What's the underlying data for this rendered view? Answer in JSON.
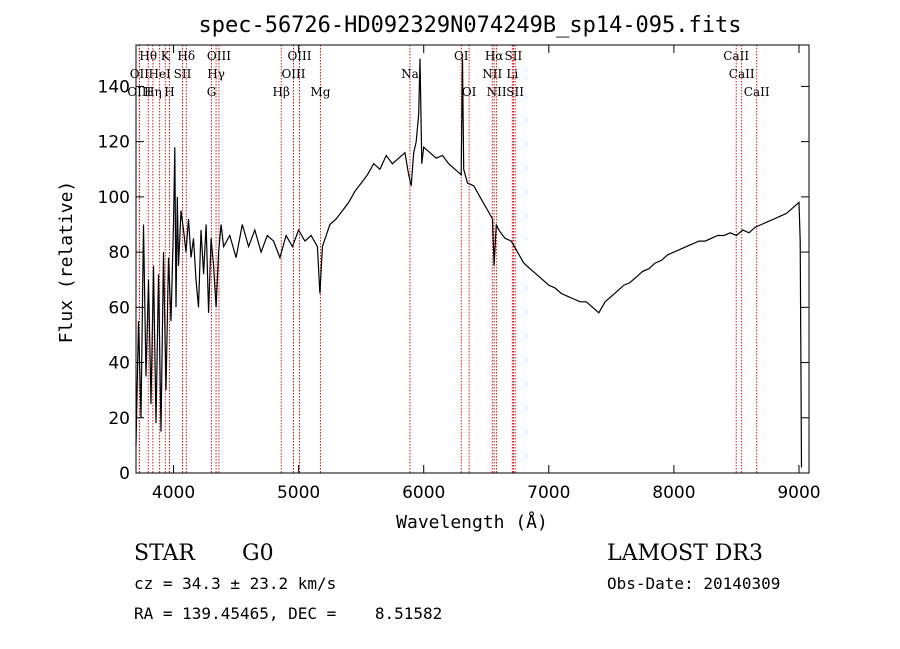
{
  "chart_data": {
    "type": "line",
    "title": "spec-56726-HD092329N074249B_sp14-095.fits",
    "xlabel": "Wavelength (Å)",
    "ylabel": "Flux (relative)",
    "xlim": [
      3700,
      9080
    ],
    "ylim": [
      0,
      155
    ],
    "x_ticks": [
      4000,
      5000,
      6000,
      7000,
      8000,
      9000
    ],
    "y_ticks": [
      0,
      20,
      40,
      60,
      80,
      100,
      120,
      140
    ],
    "series": [
      {
        "points": [
          [
            3700,
            10
          ],
          [
            3720,
            55
          ],
          [
            3740,
            20
          ],
          [
            3760,
            90
          ],
          [
            3780,
            35
          ],
          [
            3800,
            70
          ],
          [
            3820,
            25
          ],
          [
            3840,
            75
          ],
          [
            3860,
            18
          ],
          [
            3880,
            72
          ],
          [
            3900,
            15
          ],
          [
            3920,
            80
          ],
          [
            3940,
            30
          ],
          [
            3960,
            78
          ],
          [
            3980,
            55
          ],
          [
            4000,
            90
          ],
          [
            4010,
            118
          ],
          [
            4020,
            60
          ],
          [
            4030,
            100
          ],
          [
            4040,
            75
          ],
          [
            4060,
            95
          ],
          [
            4080,
            88
          ],
          [
            4100,
            80
          ],
          [
            4120,
            92
          ],
          [
            4140,
            78
          ],
          [
            4160,
            85
          ],
          [
            4180,
            70
          ],
          [
            4200,
            60
          ],
          [
            4220,
            88
          ],
          [
            4240,
            72
          ],
          [
            4260,
            90
          ],
          [
            4280,
            58
          ],
          [
            4300,
            85
          ],
          [
            4320,
            75
          ],
          [
            4340,
            60
          ],
          [
            4360,
            80
          ],
          [
            4380,
            90
          ],
          [
            4400,
            82
          ],
          [
            4450,
            86
          ],
          [
            4500,
            78
          ],
          [
            4550,
            90
          ],
          [
            4600,
            82
          ],
          [
            4650,
            88
          ],
          [
            4700,
            80
          ],
          [
            4750,
            86
          ],
          [
            4800,
            84
          ],
          [
            4850,
            78
          ],
          [
            4900,
            86
          ],
          [
            4950,
            82
          ],
          [
            5000,
            88
          ],
          [
            5050,
            84
          ],
          [
            5100,
            86
          ],
          [
            5150,
            82
          ],
          [
            5170,
            65
          ],
          [
            5190,
            82
          ],
          [
            5250,
            90
          ],
          [
            5300,
            92
          ],
          [
            5350,
            95
          ],
          [
            5400,
            98
          ],
          [
            5450,
            102
          ],
          [
            5500,
            105
          ],
          [
            5550,
            108
          ],
          [
            5600,
            112
          ],
          [
            5650,
            110
          ],
          [
            5700,
            115
          ],
          [
            5750,
            112
          ],
          [
            5800,
            114
          ],
          [
            5850,
            116
          ],
          [
            5880,
            108
          ],
          [
            5900,
            104
          ],
          [
            5920,
            116
          ],
          [
            5940,
            120
          ],
          [
            5960,
            130
          ],
          [
            5970,
            150
          ],
          [
            5985,
            112
          ],
          [
            6000,
            118
          ],
          [
            6050,
            116
          ],
          [
            6100,
            114
          ],
          [
            6150,
            115
          ],
          [
            6200,
            112
          ],
          [
            6250,
            110
          ],
          [
            6300,
            108
          ],
          [
            6310,
            150
          ],
          [
            6320,
            110
          ],
          [
            6350,
            105
          ],
          [
            6400,
            104
          ],
          [
            6450,
            100
          ],
          [
            6500,
            96
          ],
          [
            6550,
            92
          ],
          [
            6563,
            75
          ],
          [
            6580,
            90
          ],
          [
            6600,
            88
          ],
          [
            6650,
            85
          ],
          [
            6700,
            84
          ],
          [
            6750,
            80
          ],
          [
            6800,
            76
          ],
          [
            6850,
            74
          ],
          [
            6900,
            72
          ],
          [
            6950,
            70
          ],
          [
            7000,
            68
          ],
          [
            7050,
            67
          ],
          [
            7100,
            65
          ],
          [
            7150,
            64
          ],
          [
            7200,
            63
          ],
          [
            7250,
            62
          ],
          [
            7300,
            62
          ],
          [
            7350,
            60
          ],
          [
            7400,
            58
          ],
          [
            7450,
            62
          ],
          [
            7500,
            64
          ],
          [
            7550,
            66
          ],
          [
            7600,
            68
          ],
          [
            7650,
            69
          ],
          [
            7700,
            71
          ],
          [
            7750,
            73
          ],
          [
            7800,
            74
          ],
          [
            7850,
            76
          ],
          [
            7900,
            77
          ],
          [
            7950,
            79
          ],
          [
            8000,
            80
          ],
          [
            8050,
            81
          ],
          [
            8100,
            82
          ],
          [
            8150,
            83
          ],
          [
            8200,
            84
          ],
          [
            8250,
            84
          ],
          [
            8300,
            85
          ],
          [
            8350,
            86
          ],
          [
            8400,
            86
          ],
          [
            8450,
            87
          ],
          [
            8500,
            86
          ],
          [
            8550,
            88
          ],
          [
            8600,
            87
          ],
          [
            8650,
            89
          ],
          [
            8700,
            90
          ],
          [
            8750,
            91
          ],
          [
            8800,
            92
          ],
          [
            8850,
            93
          ],
          [
            8900,
            94
          ],
          [
            8950,
            96
          ],
          [
            9000,
            98
          ],
          [
            9010,
            84
          ],
          [
            9020,
            2
          ]
        ]
      }
    ],
    "lines": [
      {
        "label": "Hθ",
        "x": 3798,
        "row": 0
      },
      {
        "label": "K",
        "x": 3934,
        "row": 0
      },
      {
        "label": "Hδ",
        "x": 4102,
        "row": 0
      },
      {
        "label": "OIII",
        "x": 4363,
        "row": 0
      },
      {
        "label": "OIII",
        "x": 5007,
        "row": 0
      },
      {
        "label": "OI",
        "x": 6300,
        "row": 0
      },
      {
        "label": "Hα",
        "x": 6563,
        "row": 0
      },
      {
        "label": "SII",
        "x": 6717,
        "row": 0
      },
      {
        "label": "CaII",
        "x": 8498,
        "row": 0
      },
      {
        "label": "OII",
        "x": 3727,
        "row": 1
      },
      {
        "label": "HeI",
        "x": 3889,
        "row": 1
      },
      {
        "label": "SII",
        "x": 4072,
        "row": 1
      },
      {
        "label": "Hγ",
        "x": 4340,
        "row": 1
      },
      {
        "label": "OIII",
        "x": 4959,
        "row": 1
      },
      {
        "label": "Na",
        "x": 5890,
        "row": 1
      },
      {
        "label": "NII",
        "x": 6548,
        "row": 1
      },
      {
        "label": "Li",
        "x": 6708,
        "row": 1
      },
      {
        "label": "CaII",
        "x": 8542,
        "row": 1
      },
      {
        "label": "OIII",
        "x": 3727,
        "row": 2
      },
      {
        "label": "Hη",
        "x": 3835,
        "row": 2
      },
      {
        "label": "H",
        "x": 3968,
        "row": 2
      },
      {
        "label": "G",
        "x": 4304,
        "row": 2
      },
      {
        "label": "Hβ",
        "x": 4861,
        "row": 2
      },
      {
        "label": "Mg",
        "x": 5175,
        "row": 2
      },
      {
        "label": "OI",
        "x": 6363,
        "row": 2
      },
      {
        "label": "NII",
        "x": 6583,
        "row": 2
      },
      {
        "label": "SII",
        "x": 6731,
        "row": 2
      },
      {
        "label": "CaII",
        "x": 8662,
        "row": 2
      }
    ],
    "grid": false
  },
  "info": {
    "class": "STAR",
    "subclass": "G0",
    "survey": "LAMOST DR3",
    "cz": "cz = 34.3 ± 23.2 km/s",
    "obs_date": "Obs-Date: 20140309",
    "coords": "RA = 139.45465, DEC =    8.51582"
  },
  "colors": {
    "spectrum": "#000000",
    "line_marker": "#cc0000"
  }
}
